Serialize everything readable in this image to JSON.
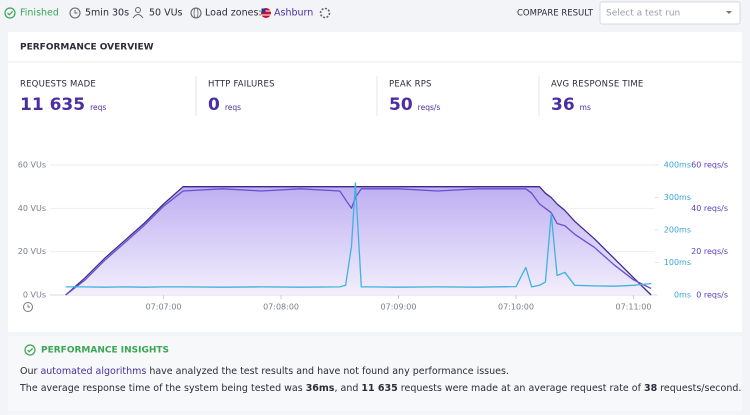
{
  "header": {
    "status": "Finished",
    "duration": "5min 30s",
    "vus": "50 VUs",
    "load_zones_label": "Load zones:",
    "load_zone": "Ashburn",
    "compare_label": "COMPARE RESULT",
    "compare_placeholder": "Select a test run"
  },
  "overview": {
    "title": "PERFORMANCE OVERVIEW",
    "metrics": [
      {
        "label": "REQUESTS MADE",
        "value": "11 635",
        "unit": "reqs"
      },
      {
        "label": "HTTP FAILURES",
        "value": "0",
        "unit": "reqs"
      },
      {
        "label": "PEAK RPS",
        "value": "50",
        "unit": "reqs/s"
      },
      {
        "label": "AVG RESPONSE TIME",
        "value": "36",
        "unit": "ms"
      }
    ]
  },
  "chart_data": {
    "type": "line",
    "x": [
      "07:06:10",
      "07:06:20",
      "07:06:30",
      "07:06:40",
      "07:06:50",
      "07:07:00",
      "07:07:10",
      "07:07:30",
      "07:07:50",
      "07:08:10",
      "07:08:30",
      "07:08:33",
      "07:08:36",
      "07:08:38",
      "07:08:41",
      "07:08:45",
      "07:09:00",
      "07:09:20",
      "07:09:40",
      "07:10:00",
      "07:10:05",
      "07:10:08",
      "07:10:12",
      "07:10:15",
      "07:10:18",
      "07:10:21",
      "07:10:25",
      "07:10:30",
      "07:10:40",
      "07:10:50",
      "07:11:00",
      "07:11:09"
    ],
    "xlim": [
      "07:06:02",
      "07:11:11"
    ],
    "xticks": [
      "07:07:00",
      "07:08:00",
      "07:09:00",
      "07:10:00",
      "07:11:00"
    ],
    "series": [
      {
        "color": "#3b2a8a",
        "fill": true,
        "axis": "y",
        "values": [
          0,
          8,
          17,
          25,
          33,
          42,
          50,
          50,
          50,
          50,
          50,
          50,
          50,
          50,
          50,
          50,
          50,
          50,
          50,
          50,
          50,
          50,
          50,
          47,
          45,
          42,
          39,
          34,
          26,
          17,
          8,
          0
        ]
      },
      {
        "color": "#6a4fd0",
        "axis": "y3",
        "values": [
          0,
          7,
          16,
          24,
          32,
          41,
          48,
          49,
          48,
          49,
          48,
          44,
          40,
          45,
          49,
          49,
          49,
          48,
          49,
          49,
          49,
          47,
          42,
          40,
          38,
          33,
          32,
          28,
          22,
          14,
          7,
          3
        ]
      },
      {
        "color": "#3fb2e2",
        "axis": "y2",
        "values": [
          25,
          25,
          24,
          25,
          24,
          25,
          25,
          24,
          25,
          24,
          25,
          30,
          150,
          345,
          25,
          25,
          24,
          25,
          24,
          26,
          85,
          25,
          30,
          40,
          250,
          60,
          70,
          30,
          28,
          27,
          30,
          35
        ]
      }
    ],
    "ylim": [
      0,
      60
    ],
    "yticks": [
      {
        "value": 0,
        "label": "0 VUs"
      },
      {
        "value": 20,
        "label": "20 VUs"
      },
      {
        "value": 40,
        "label": "40 VUs"
      },
      {
        "value": 60,
        "label": "60 VUs"
      }
    ],
    "y2lim": [
      0,
      400
    ],
    "y2ticks": [
      {
        "value": 0,
        "label": "0ms"
      },
      {
        "value": 100,
        "label": "100ms"
      },
      {
        "value": 200,
        "label": "200ms"
      },
      {
        "value": 300,
        "label": "300ms"
      },
      {
        "value": 400,
        "label": "400ms"
      }
    ],
    "y3lim": [
      0,
      60
    ],
    "y3ticks": [
      {
        "value": 0,
        "label": "0 reqs/s"
      },
      {
        "value": 20,
        "label": "20 reqs/s"
      },
      {
        "value": 40,
        "label": "40 reqs/s"
      },
      {
        "value": 60,
        "label": "60 reqs/s"
      }
    ],
    "grid": true
  },
  "insights": {
    "title": "PERFORMANCE INSIGHTS",
    "lines": [
      [
        "Our ",
        "automated algorithms",
        " have analyzed the test results and have not found any performance issues."
      ],
      [
        "The average response time of the system being tested was ",
        "36ms",
        ", and ",
        "11 635",
        " requests were made at an average request rate of ",
        "38",
        " requests/second."
      ]
    ]
  }
}
